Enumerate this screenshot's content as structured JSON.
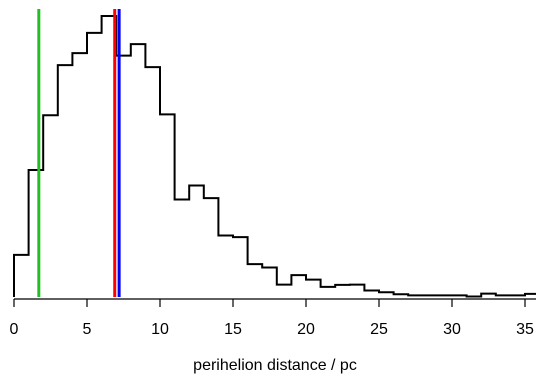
{
  "chart_data": {
    "type": "histogram",
    "title": "",
    "xlabel": "perihelion distance / pc",
    "ylabel": "",
    "xlim": [
      0,
      36
    ],
    "ylim": [
      0,
      100
    ],
    "y_axis_shown": false,
    "grid": false,
    "x_ticks": [
      0,
      5,
      10,
      15,
      20,
      25,
      30,
      35
    ],
    "x_tick_labels": [
      "0",
      "5",
      "10",
      "15",
      "20",
      "25",
      "30",
      "35"
    ],
    "bin_width": 1.0,
    "bin_edges": [
      0,
      1,
      2,
      3,
      4,
      5,
      6,
      7,
      8,
      9,
      10,
      11,
      12,
      13,
      14,
      15,
      16,
      17,
      18,
      19,
      20,
      21,
      22,
      23,
      24,
      25,
      26,
      27,
      28,
      29,
      30,
      31,
      32,
      33,
      34,
      35,
      36
    ],
    "counts": [
      15.0,
      45.2,
      64.7,
      82.5,
      86.8,
      94.0,
      100.0,
      85.9,
      90.0,
      81.8,
      65.0,
      34.7,
      39.7,
      35.2,
      21.9,
      21.3,
      11.7,
      10.5,
      4.4,
      7.8,
      6.2,
      3.6,
      4.3,
      4.4,
      2.3,
      1.7,
      1.0,
      0.6,
      0.6,
      0.6,
      0.6,
      0.2,
      1.2,
      0.6,
      0.6,
      1.1
    ],
    "series_color": "#000000",
    "vertical_lines": [
      {
        "x": 1.7,
        "color": "#22c022"
      },
      {
        "x": 6.9,
        "color": "#ff0000"
      },
      {
        "x": 7.2,
        "color": "#0000ff"
      }
    ]
  }
}
